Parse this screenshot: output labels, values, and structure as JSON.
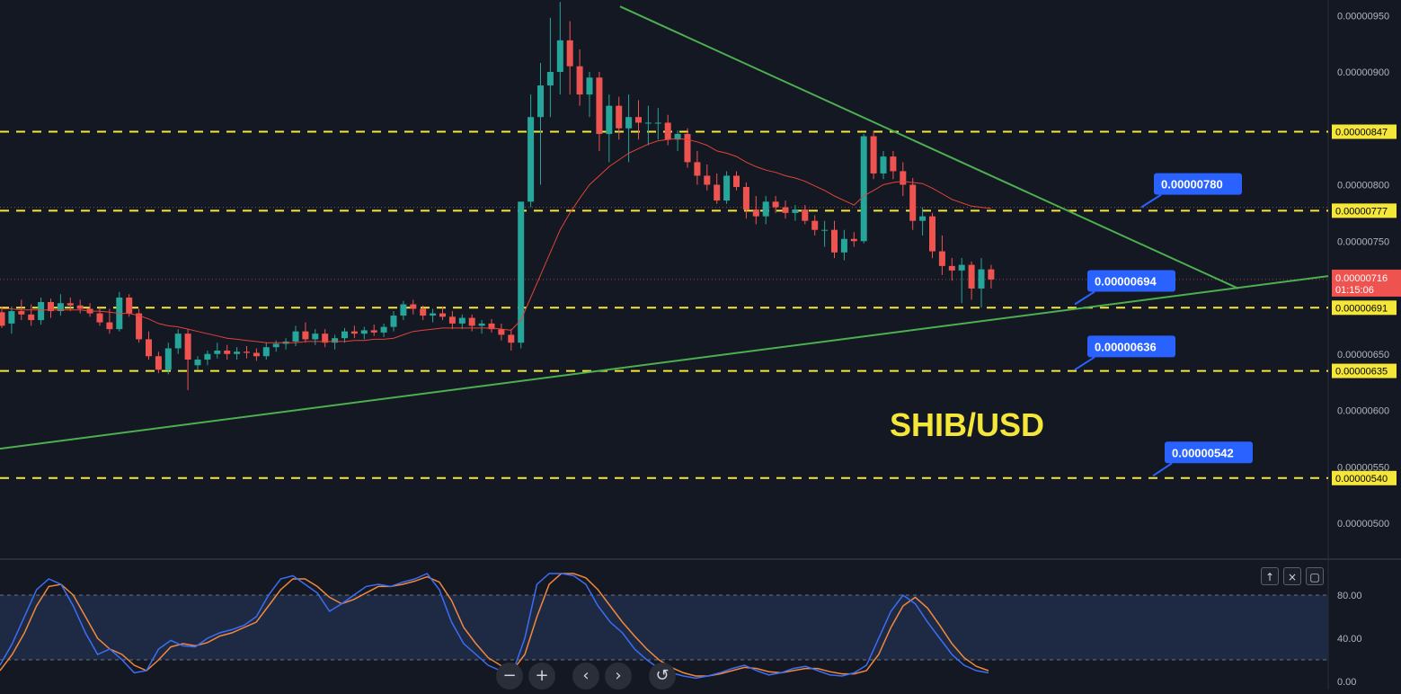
{
  "chart_data": {
    "type": "candlestick",
    "title": "SHIB/USD",
    "price_scale": {
      "ylim": [
        4.8e-06,
        9.6e-06
      ],
      "tick_labels": [
        "0.00000950",
        "0.00000900",
        "0.00000800",
        "0.00000750",
        "0.00000650",
        "0.00000600",
        "0.00000550",
        "0.00000500"
      ],
      "tick_values": [
        9.5e-06,
        9e-06,
        8e-06,
        7.5e-06,
        6.5e-06,
        6e-06,
        5.5e-06,
        5e-06
      ]
    },
    "horizontal_levels": [
      {
        "label": "0.00000847",
        "value": 8.47e-06
      },
      {
        "label": "0.00000777",
        "value": 7.77e-06
      },
      {
        "label": "0.00000691",
        "value": 6.91e-06
      },
      {
        "label": "0.00000635",
        "value": 6.35e-06
      },
      {
        "label": "0.00000540",
        "value": 5.4e-06
      }
    ],
    "callouts": [
      {
        "label": "0.00000780",
        "value": 7.8e-06
      },
      {
        "label": "0.00000694",
        "value": 6.94e-06
      },
      {
        "label": "0.00000636",
        "value": 6.36e-06
      },
      {
        "label": "0.00000542",
        "value": 5.42e-06
      }
    ],
    "current_price": {
      "label": "0.00000716",
      "value": 7.16e-06,
      "countdown": "01:15:06",
      "color": "#ef5350"
    },
    "dotted_line_value": 7.8e-06,
    "candles": [
      [
        6.87e-06,
        6.92e-06,
        6.73e-06,
        6.75e-06
      ],
      [
        6.77e-06,
        6.92e-06,
        6.68e-06,
        6.88e-06
      ],
      [
        6.88e-06,
        6.98e-06,
        6.8e-06,
        6.85e-06
      ],
      [
        6.85e-06,
        6.94e-06,
        6.75e-06,
        6.8e-06
      ],
      [
        6.8e-06,
        7e-06,
        6.76e-06,
        6.96e-06
      ],
      [
        6.96e-06,
        6.99e-06,
        6.82e-06,
        6.88e-06
      ],
      [
        6.88e-06,
        7.03e-06,
        6.84e-06,
        6.95e-06
      ],
      [
        6.95e-06,
        7e-06,
        6.88e-06,
        6.93e-06
      ],
      [
        6.93e-06,
        6.98e-06,
        6.86e-06,
        6.9e-06
      ],
      [
        6.9e-06,
        6.95e-06,
        6.83e-06,
        6.86e-06
      ],
      [
        6.86e-06,
        6.91e-06,
        6.75e-06,
        6.78e-06
      ],
      [
        6.78e-06,
        6.9e-06,
        6.68e-06,
        6.72e-06
      ],
      [
        6.72e-06,
        7.05e-06,
        6.7e-06,
        7e-06
      ],
      [
        7e-06,
        7.03e-06,
        6.83e-06,
        6.86e-06
      ],
      [
        6.86e-06,
        6.9e-06,
        6.6e-06,
        6.63e-06
      ],
      [
        6.63e-06,
        6.7e-06,
        6.45e-06,
        6.48e-06
      ],
      [
        6.48e-06,
        6.52e-06,
        6.33e-06,
        6.36e-06
      ],
      [
        6.36e-06,
        6.6e-06,
        6.32e-06,
        6.55e-06
      ],
      [
        6.55e-06,
        6.72e-06,
        6.5e-06,
        6.68e-06
      ],
      [
        6.68e-06,
        6.72e-06,
        6.18e-06,
        6.45e-06
      ],
      [
        6.4e-06,
        6.48e-06,
        6.36e-06,
        6.45e-06
      ],
      [
        6.45e-06,
        6.53e-06,
        6.4e-06,
        6.5e-06
      ],
      [
        6.5e-06,
        6.6e-06,
        6.46e-06,
        6.53e-06
      ],
      [
        6.53e-06,
        6.58e-06,
        6.45e-06,
        6.5e-06
      ],
      [
        6.5e-06,
        6.56e-06,
        6.45e-06,
        6.52e-06
      ],
      [
        6.52e-06,
        6.57e-06,
        6.46e-06,
        6.51e-06
      ],
      [
        6.51e-06,
        6.55e-06,
        6.44e-06,
        6.48e-06
      ],
      [
        6.48e-06,
        6.6e-06,
        6.45e-06,
        6.56e-06
      ],
      [
        6.56e-06,
        6.62e-06,
        6.52e-06,
        6.59e-06
      ],
      [
        6.59e-06,
        6.64e-06,
        6.54e-06,
        6.61e-06
      ],
      [
        6.61e-06,
        6.75e-06,
        6.57e-06,
        6.7e-06
      ],
      [
        6.7e-06,
        6.78e-06,
        6.6e-06,
        6.63e-06
      ],
      [
        6.63e-06,
        6.72e-06,
        6.58e-06,
        6.68e-06
      ],
      [
        6.68e-06,
        6.72e-06,
        6.56e-06,
        6.6e-06
      ],
      [
        6.6e-06,
        6.67e-06,
        6.54e-06,
        6.64e-06
      ],
      [
        6.64e-06,
        6.73e-06,
        6.6e-06,
        6.7e-06
      ],
      [
        6.7e-06,
        6.75e-06,
        6.64e-06,
        6.68e-06
      ],
      [
        6.68e-06,
        6.74e-06,
        6.63e-06,
        6.71e-06
      ],
      [
        6.71e-06,
        6.76e-06,
        6.66e-06,
        6.69e-06
      ],
      [
        6.69e-06,
        6.77e-06,
        6.65e-06,
        6.74e-06
      ],
      [
        6.74e-06,
        6.88e-06,
        6.7e-06,
        6.84e-06
      ],
      [
        6.84e-06,
        6.97e-06,
        6.8e-06,
        6.94e-06
      ],
      [
        6.94e-06,
        6.98e-06,
        6.85e-06,
        6.9e-06
      ],
      [
        6.9e-06,
        6.93e-06,
        6.8e-06,
        6.84e-06
      ],
      [
        6.84e-06,
        6.9e-06,
        6.78e-06,
        6.86e-06
      ],
      [
        6.86e-06,
        6.92e-06,
        6.8e-06,
        6.83e-06
      ],
      [
        6.83e-06,
        6.88e-06,
        6.72e-06,
        6.77e-06
      ],
      [
        6.77e-06,
        6.85e-06,
        6.72e-06,
        6.82e-06
      ],
      [
        6.82e-06,
        6.85e-06,
        6.7e-06,
        6.75e-06
      ],
      [
        6.75e-06,
        6.8e-06,
        6.68e-06,
        6.77e-06
      ],
      [
        6.77e-06,
        6.81e-06,
        6.69e-06,
        6.72e-06
      ],
      [
        6.72e-06,
        6.77e-06,
        6.62e-06,
        6.67e-06
      ],
      [
        6.67e-06,
        6.72e-06,
        6.53e-06,
        6.6e-06
      ],
      [
        6.6e-06,
        7.85e-06,
        6.55e-06,
        7.85e-06
      ],
      [
        7.85e-06,
        8.8e-06,
        7.8e-06,
        8.6e-06
      ],
      [
        8.6e-06,
        9.08e-06,
        8e-06,
        8.88e-06
      ],
      [
        8.88e-06,
        9.48e-06,
        8.6e-06,
        9e-06
      ],
      [
        9e-06,
        9.62e-06,
        8.8e-06,
        9.28e-06
      ],
      [
        9.28e-06,
        9.45e-06,
        8.8e-06,
        9.05e-06
      ],
      [
        9.05e-06,
        9.2e-06,
        8.7e-06,
        8.8e-06
      ],
      [
        8.8e-06,
        9e-06,
        8.6e-06,
        8.95e-06
      ],
      [
        8.95e-06,
        9e-06,
        8.3e-06,
        8.45e-06
      ],
      [
        8.45e-06,
        8.8e-06,
        8.2e-06,
        8.7e-06
      ],
      [
        8.7e-06,
        8.78e-06,
        8.4e-06,
        8.5e-06
      ],
      [
        8.5e-06,
        8.8e-06,
        8.2e-06,
        8.6e-06
      ],
      [
        8.6e-06,
        8.75e-06,
        8.4e-06,
        8.55e-06
      ],
      [
        8.55e-06,
        8.7e-06,
        8.35e-06,
        8.55e-06
      ],
      [
        8.55e-06,
        8.68e-06,
        8.4e-06,
        8.55e-06
      ],
      [
        8.55e-06,
        8.62e-06,
        8.35e-06,
        8.4e-06
      ],
      [
        8.4e-06,
        8.48e-06,
        8.3e-06,
        8.45e-06
      ],
      [
        8.45e-06,
        8.5e-06,
        8.15e-06,
        8.2e-06
      ],
      [
        8.2e-06,
        8.3e-06,
        8e-06,
        8.08e-06
      ],
      [
        8.08e-06,
        8.18e-06,
        7.95e-06,
        8e-06
      ],
      [
        8e-06,
        8.1e-06,
        7.83e-06,
        7.86e-06
      ],
      [
        7.86e-06,
        8.12e-06,
        7.83e-06,
        8.08e-06
      ],
      [
        8.08e-06,
        8.12e-06,
        7.95e-06,
        7.98e-06
      ],
      [
        7.98e-06,
        8.02e-06,
        7.7e-06,
        7.78e-06
      ],
      [
        7.78e-06,
        7.9e-06,
        7.65e-06,
        7.72e-06
      ],
      [
        7.72e-06,
        7.9e-06,
        7.65e-06,
        7.85e-06
      ],
      [
        7.85e-06,
        7.9e-06,
        7.75e-06,
        7.8e-06
      ],
      [
        7.8e-06,
        7.86e-06,
        7.7e-06,
        7.75e-06
      ],
      [
        7.75e-06,
        7.82e-06,
        7.68e-06,
        7.78e-06
      ],
      [
        7.78e-06,
        7.82e-06,
        7.65e-06,
        7.68e-06
      ],
      [
        7.68e-06,
        7.73e-06,
        7.55e-06,
        7.6e-06
      ],
      [
        7.6e-06,
        7.68e-06,
        7.45e-06,
        7.6e-06
      ],
      [
        7.6e-06,
        7.68e-06,
        7.35e-06,
        7.4e-06
      ],
      [
        7.4e-06,
        7.6e-06,
        7.33e-06,
        7.52e-06
      ],
      [
        7.52e-06,
        7.58e-06,
        7.45e-06,
        7.5e-06
      ],
      [
        7.5e-06,
        8.45e-06,
        7.48e-06,
        8.43e-06
      ],
      [
        8.43e-06,
        8.48e-06,
        8.05e-06,
        8.1e-06
      ],
      [
        8.1e-06,
        8.3e-06,
        8.05e-06,
        8.25e-06
      ],
      [
        8.25e-06,
        8.3e-06,
        8.05e-06,
        8.12e-06
      ],
      [
        8.12e-06,
        8.2e-06,
        7.9e-06,
        8e-06
      ],
      [
        8e-06,
        8.06e-06,
        7.6e-06,
        7.68e-06
      ],
      [
        7.68e-06,
        7.8e-06,
        7.55e-06,
        7.72e-06
      ],
      [
        7.72e-06,
        7.75e-06,
        7.35e-06,
        7.41e-06
      ],
      [
        7.41e-06,
        7.55e-06,
        7.2e-06,
        7.28e-06
      ],
      [
        7.28e-06,
        7.35e-06,
        7.15e-06,
        7.24e-06
      ],
      [
        7.24e-06,
        7.35e-06,
        6.95e-06,
        7.29e-06
      ],
      [
        7.29e-06,
        7.32e-06,
        6.98e-06,
        7.08e-06
      ],
      [
        7.08e-06,
        7.35e-06,
        6.91e-06,
        7.25e-06
      ],
      [
        7.25e-06,
        7.29e-06,
        7.08e-06,
        7.16e-06
      ]
    ],
    "ema": [
      6.9e-06,
      6.9e-06,
      6.89e-06,
      6.89e-06,
      6.89e-06,
      6.89e-06,
      6.89e-06,
      6.89e-06,
      6.89e-06,
      6.88e-06,
      6.88e-06,
      6.87e-06,
      6.86e-06,
      6.86e-06,
      6.84e-06,
      6.81e-06,
      6.77e-06,
      6.75e-06,
      6.74e-06,
      6.72e-06,
      6.7e-06,
      6.68e-06,
      6.66e-06,
      6.64e-06,
      6.63e-06,
      6.62e-06,
      6.61e-06,
      6.6e-06,
      6.6e-06,
      6.6e-06,
      6.6e-06,
      6.61e-06,
      6.61e-06,
      6.61e-06,
      6.61e-06,
      6.61e-06,
      6.62e-06,
      6.62e-06,
      6.63e-06,
      6.63e-06,
      6.64e-06,
      6.67e-06,
      6.7e-06,
      6.71e-06,
      6.72e-06,
      6.73e-06,
      6.73e-06,
      6.73e-06,
      6.73e-06,
      6.73e-06,
      6.73e-06,
      6.72e-06,
      6.71e-06,
      6.8e-06,
      7e-06,
      7.2e-06,
      7.4e-06,
      7.6e-06,
      7.75e-06,
      7.88e-06,
      8e-06,
      8.08e-06,
      8.16e-06,
      8.22e-06,
      8.28e-06,
      8.32e-06,
      8.36e-06,
      8.39e-06,
      8.4e-06,
      8.41e-06,
      8.4e-06,
      8.38e-06,
      8.35e-06,
      8.3e-06,
      8.28e-06,
      8.25e-06,
      8.2e-06,
      8.16e-06,
      8.13e-06,
      8.11e-06,
      8.08e-06,
      8.06e-06,
      8.03e-06,
      7.99e-06,
      7.95e-06,
      7.9e-06,
      7.86e-06,
      7.82e-06,
      7.9e-06,
      7.95e-06,
      8e-06,
      8.02e-06,
      8.03e-06,
      8.02e-06,
      8.01e-06,
      7.97e-06,
      7.92e-06,
      7.87e-06,
      7.84e-06,
      7.81e-06,
      7.8e-06,
      7.79e-06
    ],
    "oscillator": {
      "tick_labels": [
        "80.00",
        "40.00",
        "0.00"
      ],
      "tick_values": [
        80,
        40,
        0
      ],
      "ylim": [
        0,
        105
      ],
      "levels": [
        80,
        20
      ],
      "k": [
        15,
        35,
        60,
        85,
        95,
        90,
        70,
        45,
        25,
        30,
        20,
        8,
        10,
        30,
        38,
        33,
        32,
        40,
        45,
        48,
        52,
        60,
        80,
        95,
        98,
        90,
        82,
        65,
        72,
        80,
        88,
        90,
        88,
        92,
        95,
        100,
        85,
        55,
        35,
        25,
        15,
        10,
        8,
        40,
        90,
        100,
        100,
        98,
        90,
        70,
        55,
        45,
        30,
        20,
        12,
        8,
        5,
        3,
        5,
        8,
        12,
        15,
        10,
        6,
        8,
        12,
        14,
        10,
        6,
        5,
        8,
        15,
        40,
        65,
        80,
        72,
        55,
        40,
        25,
        15,
        10,
        8
      ],
      "d": [
        10,
        25,
        45,
        70,
        88,
        90,
        80,
        60,
        40,
        30,
        25,
        15,
        10,
        20,
        32,
        35,
        33,
        36,
        42,
        45,
        50,
        55,
        70,
        85,
        95,
        95,
        88,
        78,
        72,
        76,
        82,
        88,
        88,
        90,
        93,
        97,
        92,
        75,
        50,
        35,
        22,
        15,
        10,
        25,
        60,
        90,
        100,
        100,
        96,
        85,
        70,
        55,
        42,
        30,
        20,
        13,
        8,
        5,
        5,
        7,
        10,
        13,
        12,
        9,
        8,
        10,
        12,
        12,
        9,
        7,
        7,
        10,
        25,
        50,
        70,
        78,
        68,
        52,
        35,
        22,
        14,
        10
      ],
      "k_color": "#3b6ef5",
      "d_color": "#f2883b"
    },
    "trendlines": [
      {
        "name": "descending resistance",
        "color": "#4caf50"
      },
      {
        "name": "ascending support",
        "color": "#4caf50"
      }
    ],
    "colors": {
      "up": "#26a69a",
      "down": "#ef5350",
      "level": "#f5e63a",
      "callout": "#2962ff",
      "ema": "#e0443a",
      "background": "#141822"
    },
    "grid": false
  },
  "controls": {
    "zoom_out": "−",
    "zoom_in": "+",
    "scroll_left": "‹",
    "scroll_right": "›",
    "reset": "↺",
    "osc_up": "↑",
    "osc_close": "×",
    "osc_maximize": "▢"
  }
}
